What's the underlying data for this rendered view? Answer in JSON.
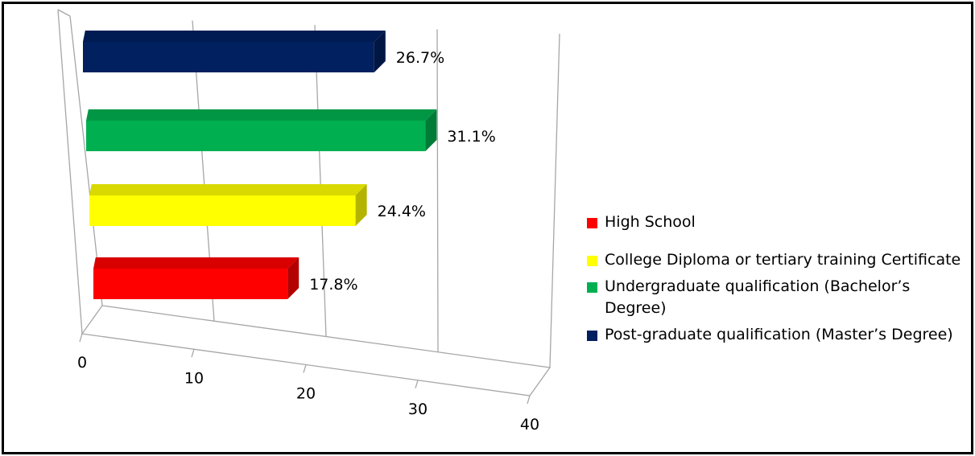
{
  "chart_data": {
    "type": "bar",
    "orientation": "horizontal",
    "style": "3d",
    "categories": [
      "High School",
      "College Diploma or tertiary training Certificate",
      "Undergraduate qualification (Bachelor’s Degree)",
      "Post-graduate qualification (Master’s Degree)"
    ],
    "values": [
      17.8,
      24.4,
      31.1,
      26.7
    ],
    "data_labels": [
      "17.8%",
      "24.4%",
      "31.1%",
      "26.7%"
    ],
    "colors": [
      "#ff0000",
      "#ffff00",
      "#00b050",
      "#002060"
    ],
    "x_ticks": [
      "0",
      "10",
      "20",
      "30",
      "40"
    ],
    "xlim": [
      0,
      40
    ],
    "grid": true,
    "legend_position": "right",
    "title": "",
    "xlabel": "",
    "ylabel": ""
  }
}
